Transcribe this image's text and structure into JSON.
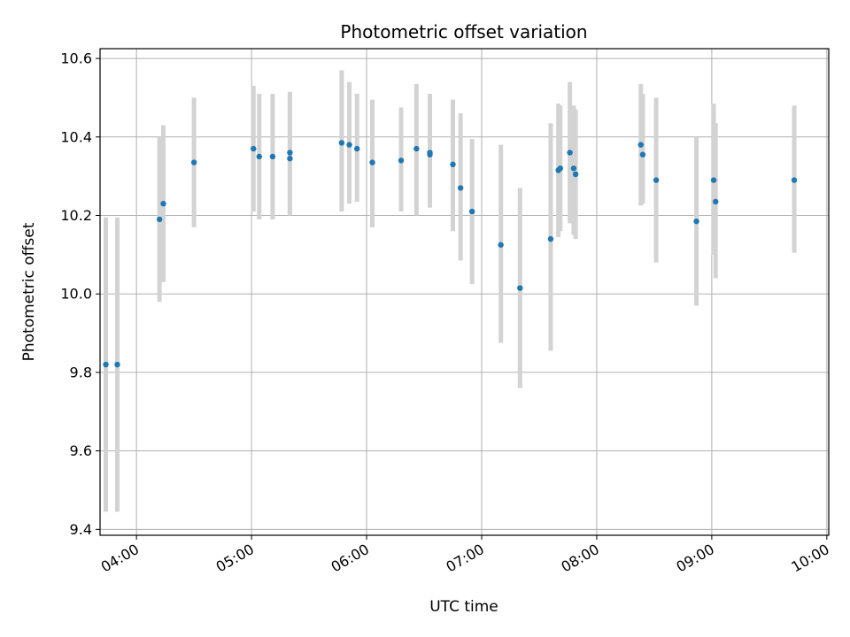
{
  "chart_data": {
    "type": "scatter",
    "title": "Photometric offset variation",
    "xlabel": "UTC time",
    "ylabel": "Photometric offset",
    "x_tick_labels": [
      "04:00",
      "05:00",
      "06:00",
      "07:00",
      "08:00",
      "09:00",
      "10:00"
    ],
    "y_tick_labels": [
      "9.4",
      "9.6",
      "9.8",
      "10.0",
      "10.2",
      "10.4",
      "10.6"
    ],
    "x_ticks": [
      "04:00",
      "05:00",
      "06:00",
      "07:00",
      "08:00",
      "09:00",
      "10:00"
    ],
    "y_ticks": [
      9.4,
      9.6,
      9.8,
      10.0,
      10.2,
      10.4,
      10.6
    ],
    "xlim": [
      "03:41",
      "10:01"
    ],
    "ylim": [
      9.385,
      10.625
    ],
    "grid": true,
    "colors": {
      "point": "#1f77b4",
      "errorbar": "#d3d3d3",
      "grid": "#b0b0b0"
    },
    "points": [
      {
        "x": "03:44",
        "y": 9.82,
        "low": 9.445,
        "high": 10.195
      },
      {
        "x": "03:50",
        "y": 9.82,
        "low": 9.445,
        "high": 10.195
      },
      {
        "x": "04:12",
        "y": 10.19,
        "low": 9.98,
        "high": 10.4
      },
      {
        "x": "04:14",
        "y": 10.23,
        "low": 10.03,
        "high": 10.43
      },
      {
        "x": "04:30",
        "y": 10.335,
        "low": 10.17,
        "high": 10.5
      },
      {
        "x": "05:01",
        "y": 10.37,
        "low": 10.21,
        "high": 10.53
      },
      {
        "x": "05:04",
        "y": 10.35,
        "low": 10.19,
        "high": 10.51
      },
      {
        "x": "05:11",
        "y": 10.35,
        "low": 10.19,
        "high": 10.51
      },
      {
        "x": "05:20",
        "y": 10.345,
        "low": 10.2,
        "high": 10.51
      },
      {
        "x": "05:20",
        "y": 10.36,
        "low": 10.2,
        "high": 10.515
      },
      {
        "x": "05:47",
        "y": 10.385,
        "low": 10.21,
        "high": 10.57
      },
      {
        "x": "05:51",
        "y": 10.38,
        "low": 10.23,
        "high": 10.54
      },
      {
        "x": "05:55",
        "y": 10.37,
        "low": 10.235,
        "high": 10.51
      },
      {
        "x": "06:03",
        "y": 10.335,
        "low": 10.17,
        "high": 10.495
      },
      {
        "x": "06:18",
        "y": 10.34,
        "low": 10.21,
        "high": 10.475
      },
      {
        "x": "06:26",
        "y": 10.37,
        "low": 10.2,
        "high": 10.535
      },
      {
        "x": "06:33",
        "y": 10.36,
        "low": 10.22,
        "high": 10.51
      },
      {
        "x": "06:33",
        "y": 10.355,
        "low": 10.22,
        "high": 10.505
      },
      {
        "x": "06:45",
        "y": 10.33,
        "low": 10.16,
        "high": 10.495
      },
      {
        "x": "06:49",
        "y": 10.27,
        "low": 10.085,
        "high": 10.46
      },
      {
        "x": "06:55",
        "y": 10.21,
        "low": 10.025,
        "high": 10.395
      },
      {
        "x": "07:10",
        "y": 10.125,
        "low": 9.875,
        "high": 10.38
      },
      {
        "x": "07:20",
        "y": 10.015,
        "low": 9.76,
        "high": 10.27
      },
      {
        "x": "07:36",
        "y": 10.14,
        "low": 9.855,
        "high": 10.435
      },
      {
        "x": "07:40",
        "y": 10.315,
        "low": 10.145,
        "high": 10.485
      },
      {
        "x": "07:41",
        "y": 10.32,
        "low": 10.16,
        "high": 10.48
      },
      {
        "x": "07:46",
        "y": 10.36,
        "low": 10.18,
        "high": 10.54
      },
      {
        "x": "07:48",
        "y": 10.32,
        "low": 10.15,
        "high": 10.48
      },
      {
        "x": "07:49",
        "y": 10.305,
        "low": 10.14,
        "high": 10.47
      },
      {
        "x": "08:23",
        "y": 10.38,
        "low": 10.225,
        "high": 10.535
      },
      {
        "x": "08:24",
        "y": 10.355,
        "low": 10.23,
        "high": 10.51
      },
      {
        "x": "08:31",
        "y": 10.29,
        "low": 10.08,
        "high": 10.5
      },
      {
        "x": "08:52",
        "y": 10.185,
        "low": 9.97,
        "high": 10.4
      },
      {
        "x": "09:01",
        "y": 10.29,
        "low": 10.1,
        "high": 10.485
      },
      {
        "x": "09:02",
        "y": 10.235,
        "low": 10.04,
        "high": 10.435
      },
      {
        "x": "09:43",
        "y": 10.29,
        "low": 10.105,
        "high": 10.48
      }
    ]
  }
}
